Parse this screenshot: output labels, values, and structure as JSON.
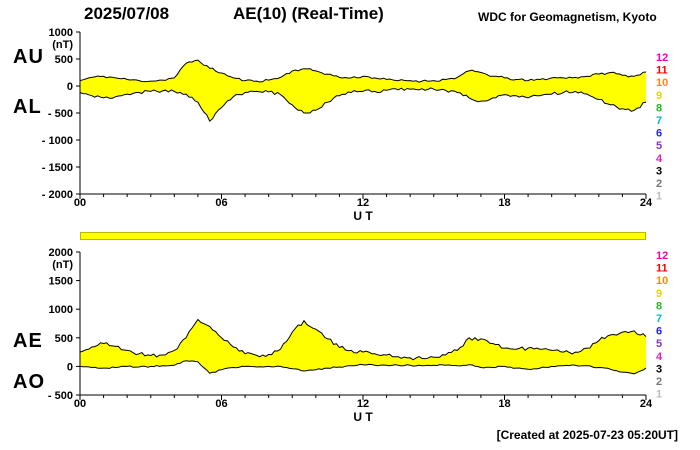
{
  "header": {
    "date": "2025/07/08",
    "title": "AE(10) (Real-Time)",
    "source": "WDC for Geomagnetism, Kyoto"
  },
  "footer": {
    "created": "[Created at 2025-07-23 05:20UT]"
  },
  "status_bar": {
    "color": "#ffff00"
  },
  "station_legend": {
    "numbers": [
      12,
      11,
      10,
      9,
      8,
      7,
      6,
      5,
      4,
      3,
      2,
      1
    ],
    "colors": [
      "#ff00aa",
      "#ff0000",
      "#ff8800",
      "#e8d800",
      "#22bb22",
      "#00bbcc",
      "#2222ff",
      "#8833cc",
      "#dd22bb",
      "#000000",
      "#777777",
      "#bbbbbb"
    ]
  },
  "chart_data": [
    {
      "type": "area",
      "title": "AU and AL indices, filled band between upper (AU) and lower (AL) envelopes",
      "xlabel": "U T",
      "ylabel": "(nT)",
      "unit_label": "(nT)",
      "ylim": [
        -2000,
        1000
      ],
      "yticks": [
        1000,
        500,
        0,
        -500,
        -1000,
        -1500,
        -2000
      ],
      "ytick_labels": [
        "1000",
        "500",
        "0",
        "- 500",
        "- 1000",
        "- 1500",
        "- 2000"
      ],
      "xlim": [
        0,
        24
      ],
      "xticks": [
        0,
        6,
        12,
        18,
        24
      ],
      "xtick_labels": [
        "00",
        "06",
        "12",
        "18",
        "24"
      ],
      "grid": false,
      "legend_position": "right",
      "fill_color": "#ffff00",
      "line_color": "#000000",
      "x": [
        0,
        0.5,
        1,
        1.5,
        2,
        2.5,
        3,
        3.5,
        4,
        4.5,
        5,
        5.5,
        6,
        6.5,
        7,
        7.5,
        8,
        8.5,
        9,
        9.5,
        10,
        10.5,
        11,
        11.5,
        12,
        12.5,
        13,
        13.5,
        14,
        14.5,
        15,
        15.5,
        16,
        16.5,
        17,
        17.5,
        18,
        18.5,
        19,
        19.5,
        20,
        20.5,
        21,
        21.5,
        22,
        22.5,
        23,
        23.5,
        24
      ],
      "series": [
        {
          "name": "AU",
          "noise": 22,
          "values": [
            100,
            160,
            180,
            150,
            120,
            100,
            90,
            110,
            150,
            420,
            480,
            330,
            240,
            150,
            100,
            90,
            110,
            160,
            280,
            320,
            280,
            220,
            160,
            150,
            180,
            150,
            120,
            100,
            100,
            90,
            100,
            120,
            160,
            280,
            250,
            180,
            150,
            120,
            100,
            120,
            150,
            150,
            160,
            180,
            220,
            250,
            200,
            180,
            260
          ]
        },
        {
          "name": "AL",
          "noise": 30,
          "values": [
            -120,
            -180,
            -220,
            -200,
            -150,
            -120,
            -100,
            -90,
            -100,
            -150,
            -300,
            -650,
            -400,
            -200,
            -120,
            -100,
            -110,
            -160,
            -350,
            -500,
            -450,
            -300,
            -180,
            -120,
            -100,
            -100,
            -80,
            -70,
            -60,
            -50,
            -60,
            -80,
            -120,
            -220,
            -280,
            -220,
            -160,
            -180,
            -220,
            -180,
            -150,
            -120,
            -100,
            -150,
            -250,
            -350,
            -420,
            -450,
            -300
          ]
        }
      ]
    },
    {
      "type": "area",
      "title": "AE and AO indices, filled band between AE (upper) and AO (lower)",
      "xlabel": "U T",
      "ylabel": "(nT)",
      "unit_label": "(nT)",
      "ylim": [
        -500,
        2000
      ],
      "yticks": [
        2000,
        1500,
        1000,
        500,
        0,
        -500
      ],
      "ytick_labels": [
        "2000",
        "1500",
        "1000",
        "500",
        "0",
        "- 500"
      ],
      "xlim": [
        0,
        24
      ],
      "xticks": [
        0,
        6,
        12,
        18,
        24
      ],
      "xtick_labels": [
        "00",
        "06",
        "12",
        "18",
        "24"
      ],
      "grid": false,
      "legend_position": "right",
      "fill_color": "#ffff00",
      "line_color": "#000000",
      "x": [
        0,
        0.5,
        1,
        1.5,
        2,
        2.5,
        3,
        3.5,
        4,
        4.5,
        5,
        5.5,
        6,
        6.5,
        7,
        7.5,
        8,
        8.5,
        9,
        9.5,
        10,
        10.5,
        11,
        11.5,
        12,
        12.5,
        13,
        13.5,
        14,
        14.5,
        15,
        15.5,
        16,
        16.5,
        17,
        17.5,
        18,
        18.5,
        19,
        19.5,
        20,
        20.5,
        21,
        21.5,
        22,
        22.5,
        23,
        23.5,
        24
      ],
      "series": [
        {
          "name": "AE",
          "noise": 35,
          "values": [
            250,
            340,
            400,
            350,
            280,
            220,
            190,
            200,
            280,
            500,
            820,
            700,
            500,
            340,
            220,
            190,
            210,
            300,
            600,
            800,
            650,
            480,
            330,
            280,
            250,
            220,
            200,
            170,
            150,
            140,
            160,
            200,
            280,
            500,
            480,
            400,
            320,
            300,
            320,
            300,
            280,
            250,
            250,
            320,
            450,
            550,
            600,
            620,
            520
          ]
        },
        {
          "name": "AO",
          "noise": 12,
          "values": [
            0,
            -20,
            -30,
            -20,
            0,
            -10,
            0,
            10,
            20,
            100,
            80,
            -120,
            -60,
            -20,
            0,
            -10,
            0,
            0,
            -40,
            -80,
            -60,
            -30,
            -10,
            10,
            30,
            20,
            20,
            20,
            20,
            10,
            20,
            20,
            10,
            30,
            -20,
            -20,
            0,
            -30,
            -50,
            -30,
            0,
            10,
            20,
            10,
            -20,
            -50,
            -100,
            -130,
            -30
          ]
        }
      ]
    }
  ]
}
